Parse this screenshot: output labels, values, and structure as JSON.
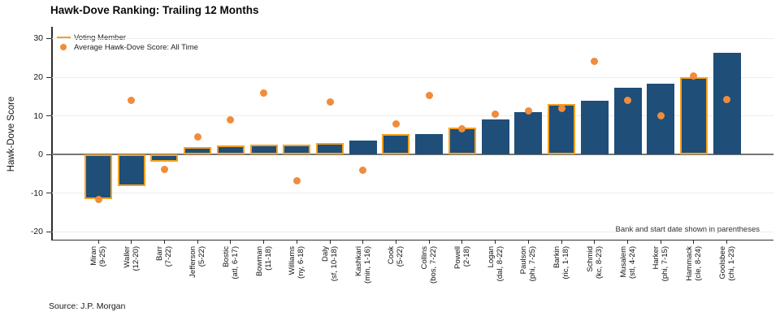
{
  "title": "Hawk-Dove Ranking: Trailing 12 Months",
  "source": "Source: J.P. Morgan",
  "annotation": "Bank and start date shown in parentheses",
  "legend": {
    "voting": "Voting Member",
    "average": "Average Hawk-Dove Score: All Time"
  },
  "colors": {
    "bar": "#1F4E79",
    "voting_outline": "#F7A11D",
    "dot": "#F08C3C",
    "grid": "#ECECEC",
    "zero_line": "#757575",
    "axis": "#2F2F2F"
  },
  "chart_data": {
    "type": "bar",
    "title": "Hawk-Dove Ranking: Trailing 12 Months",
    "xlabel": "",
    "ylabel": "Hawk-Dove Score",
    "yticks": [
      30,
      20,
      10,
      0,
      -10,
      -20
    ],
    "ylim": [
      -22.0,
      32.6
    ],
    "grid": true,
    "legend_position": "top-left-inside",
    "series_info": [
      {
        "name": "Hawk-Dove Score: Trailing 12 Months",
        "mark": "bar",
        "highlight": "orange outline = Voting Member"
      },
      {
        "name": "Average Hawk-Dove Score: All Time",
        "mark": "point"
      }
    ],
    "members": [
      {
        "name": "Miran",
        "detail": "(9-25)",
        "score": -11.6,
        "average": -11.7,
        "voting": true
      },
      {
        "name": "Waller",
        "detail": "(12-20)",
        "score": -8.2,
        "average": 14.0,
        "voting": true
      },
      {
        "name": "Barr",
        "detail": "(7-22)",
        "score": -1.8,
        "average": -3.9,
        "voting": true
      },
      {
        "name": "Jefferson",
        "detail": "(5-22)",
        "score": 1.9,
        "average": 4.6,
        "voting": true
      },
      {
        "name": "Bostic",
        "detail": "(atl, 6-17)",
        "score": 2.3,
        "average": 8.9,
        "voting": true
      },
      {
        "name": "Bowman",
        "detail": "(11-18)",
        "score": 2.6,
        "average": 16.0,
        "voting": true
      },
      {
        "name": "Williams",
        "detail": "(ny, 6-18)",
        "score": 2.6,
        "average": -6.8,
        "voting": true
      },
      {
        "name": "Daly",
        "detail": "(sf, 10-18)",
        "score": 2.9,
        "average": 13.5,
        "voting": true
      },
      {
        "name": "Kashkari",
        "detail": "(min, 1-16)",
        "score": 3.6,
        "average": -4.1,
        "voting": false
      },
      {
        "name": "Cook",
        "detail": "(5-22)",
        "score": 5.2,
        "average": 8.0,
        "voting": true
      },
      {
        "name": "Collins",
        "detail": "(bos, 7-22)",
        "score": 5.4,
        "average": 15.2,
        "voting": false
      },
      {
        "name": "Powell",
        "detail": "(2-18)",
        "score": 6.9,
        "average": 6.7,
        "voting": true
      },
      {
        "name": "Logan",
        "detail": "(dal, 8-22)",
        "score": 9.1,
        "average": 10.5,
        "voting": false
      },
      {
        "name": "Paulson",
        "detail": "(phi, 7-25)",
        "score": 10.9,
        "average": 11.2,
        "voting": false
      },
      {
        "name": "Barkin",
        "detail": "(ric, 1-18)",
        "score": 13.1,
        "average": 11.9,
        "voting": true
      },
      {
        "name": "Schmid",
        "detail": "(kc, 8-23)",
        "score": 13.9,
        "average": 24.1,
        "voting": false
      },
      {
        "name": "Musalem",
        "detail": "(stl, 4-24)",
        "score": 17.2,
        "average": 14.1,
        "voting": false
      },
      {
        "name": "Harker",
        "detail": "(phi, 7-15)",
        "score": 18.4,
        "average": 10.0,
        "voting": false
      },
      {
        "name": "Hammack",
        "detail": "(cle, 8-24)",
        "score": 20.0,
        "average": 20.3,
        "voting": true
      },
      {
        "name": "Goolsbee",
        "detail": "(chi, 1-23)",
        "score": 26.2,
        "average": 14.3,
        "voting": false
      }
    ]
  }
}
